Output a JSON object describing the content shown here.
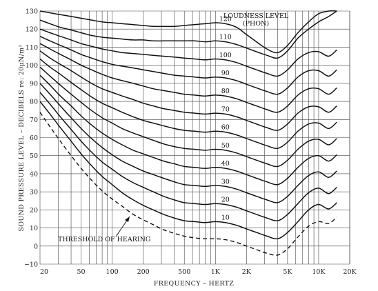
{
  "chart_data": {
    "type": "line",
    "title": "",
    "xlabel": "FREQUENCY – HERTZ",
    "ylabel": "SOUND PRESSURE LEVEL – DECIBELS re: 20μN/m²",
    "x_scale": "log",
    "xlim": [
      20,
      20000
    ],
    "ylim": [
      -10,
      130
    ],
    "x_ticks": [
      {
        "value": 20,
        "label": "20"
      },
      {
        "value": 50,
        "label": "50"
      },
      {
        "value": 100,
        "label": "100"
      },
      {
        "value": 200,
        "label": "200"
      },
      {
        "value": 500,
        "label": "500"
      },
      {
        "value": 1000,
        "label": "1K"
      },
      {
        "value": 2000,
        "label": "2K"
      },
      {
        "value": 5000,
        "label": "5K"
      },
      {
        "value": 10000,
        "label": "10K"
      },
      {
        "value": 20000,
        "label": "20K"
      }
    ],
    "y_ticks": [
      {
        "value": 130,
        "label": "130"
      },
      {
        "value": 120,
        "label": "120"
      },
      {
        "value": 110,
        "label": "110"
      },
      {
        "value": 100,
        "label": "100"
      },
      {
        "value": 90,
        "label": "90"
      },
      {
        "value": 80,
        "label": "80"
      },
      {
        "value": 70,
        "label": "70"
      },
      {
        "value": 60,
        "label": "60"
      },
      {
        "value": 50,
        "label": "50"
      },
      {
        "value": 40,
        "label": "40"
      },
      {
        "value": 30,
        "label": "30"
      },
      {
        "value": 20,
        "label": "20"
      },
      {
        "value": 10,
        "label": "10"
      },
      {
        "value": 0,
        "label": "0"
      },
      {
        "value": -10,
        "label": "−10"
      }
    ],
    "grid": "logarithmic vertical and horizontal",
    "legend_title_lines": [
      "LOUDNESS LEVEL",
      "(PHON)"
    ],
    "x": [
      20,
      25,
      31.5,
      40,
      50,
      63,
      80,
      100,
      125,
      160,
      200,
      250,
      315,
      400,
      500,
      630,
      800,
      1000,
      1250,
      1600,
      2000,
      2500,
      3150,
      4000,
      5000,
      6300,
      8000,
      10000,
      12500,
      15000
    ],
    "series": [
      {
        "name": "THRESHOLD OF HEARING",
        "style": "dashed",
        "values": [
          74,
          66,
          58,
          50,
          43,
          36.5,
          30.5,
          26,
          22,
          17.5,
          14.5,
          11.8,
          9,
          7,
          5.5,
          4.5,
          4,
          4,
          3.5,
          2,
          0,
          -2,
          -4,
          -5,
          -1.5,
          5,
          11,
          13.5,
          12.5,
          16
        ]
      },
      {
        "label": "10",
        "values": [
          80,
          73,
          65.5,
          58,
          51,
          44.5,
          38.5,
          34,
          29.5,
          25.5,
          22.5,
          20,
          17.5,
          15.5,
          14,
          13.5,
          13,
          13.5,
          13,
          11.5,
          9.5,
          7.5,
          5.5,
          4,
          7.5,
          13.5,
          20,
          23,
          20.5,
          24
        ]
      },
      {
        "label": "20",
        "values": [
          85,
          78.5,
          71.5,
          64.5,
          58,
          52,
          46.5,
          42.5,
          38.5,
          35,
          32.5,
          30,
          27.5,
          25.5,
          24,
          23.5,
          23,
          23.5,
          23,
          21.5,
          19.5,
          17.5,
          15.5,
          14,
          17.5,
          23.5,
          29.5,
          32,
          29,
          32.5
        ]
      },
      {
        "label": "30",
        "values": [
          90,
          84,
          77.5,
          71,
          65,
          59.5,
          54.5,
          50.5,
          47,
          44,
          41.5,
          39.5,
          37.5,
          35.5,
          34,
          33.5,
          33,
          33.5,
          33,
          31.5,
          29.5,
          27.5,
          25.5,
          24,
          27.5,
          33.5,
          39,
          41,
          38,
          41.5
        ]
      },
      {
        "label": "40",
        "values": [
          94.5,
          89,
          83,
          77.5,
          72,
          67,
          62.5,
          59,
          56,
          53,
          51,
          49,
          47,
          45.5,
          44,
          43.5,
          43,
          43.5,
          43,
          41.5,
          39.5,
          37.5,
          35.5,
          34,
          37.5,
          43.5,
          48.5,
          50,
          47,
          50.5
        ]
      },
      {
        "label": "50",
        "values": [
          99,
          94,
          89,
          84,
          79.5,
          75,
          71,
          68,
          65,
          62.5,
          60.5,
          58.5,
          56.5,
          55,
          54,
          53.5,
          53,
          53.5,
          53,
          51.5,
          49.5,
          47.5,
          45.5,
          44,
          47.5,
          53.5,
          58,
          59,
          56,
          59.5
        ]
      },
      {
        "label": "60",
        "values": [
          103.5,
          99,
          95,
          90.5,
          86.5,
          82.5,
          79,
          76.5,
          74,
          71.5,
          69.5,
          68,
          66.5,
          65,
          64,
          63.5,
          63,
          63.5,
          63,
          61.5,
          59.5,
          57.5,
          55.5,
          54,
          57.5,
          63.5,
          67.5,
          68,
          65,
          68.5
        ]
      },
      {
        "label": "70",
        "values": [
          108,
          104,
          100.5,
          97,
          93.5,
          90,
          87,
          85,
          83,
          81,
          79,
          77.5,
          76,
          75,
          74,
          73.5,
          73,
          73.5,
          73,
          71.5,
          69.5,
          67.5,
          65.5,
          64,
          67.5,
          73.5,
          77,
          77,
          74,
          77.5
        ]
      },
      {
        "label": "80",
        "values": [
          112,
          109,
          106,
          103,
          100,
          97.5,
          95,
          93,
          91.5,
          90,
          88.5,
          87,
          86,
          85,
          84,
          83.5,
          83,
          83.5,
          83,
          81.5,
          79.5,
          77.5,
          75.5,
          74,
          77.5,
          83.5,
          87,
          87,
          84,
          87.5
        ]
      },
      {
        "label": "90",
        "values": [
          116,
          113.5,
          111,
          108.5,
          106,
          104,
          102,
          100.5,
          99.5,
          98.5,
          97.5,
          96.5,
          95.5,
          94.5,
          94,
          93.5,
          93,
          93.5,
          93,
          91.5,
          89.5,
          87.5,
          85.5,
          84,
          87.5,
          93.5,
          97,
          97,
          94,
          97.5
        ]
      },
      {
        "label": "100",
        "values": [
          120,
          118,
          116,
          114,
          112,
          110.5,
          109,
          108,
          107,
          106.5,
          106,
          105.5,
          105,
          104.5,
          104,
          103.5,
          103,
          103.5,
          103,
          101.5,
          99.5,
          97.5,
          95.5,
          94,
          97.5,
          103.5,
          107,
          107.5,
          105,
          108.5
        ]
      },
      {
        "label": "110",
        "values": [
          125,
          123,
          121,
          119.5,
          118,
          116.5,
          115.5,
          115,
          114.5,
          114,
          114,
          113.5,
          113.5,
          113.5,
          113.5,
          113.5,
          113,
          113.5,
          113,
          111.5,
          109.5,
          107.5,
          105.5,
          104,
          108,
          115,
          120,
          124,
          127,
          130
        ]
      },
      {
        "label": "120",
        "values": [
          130,
          129,
          128,
          127,
          126,
          125,
          124,
          123.5,
          123,
          122.5,
          122,
          121.5,
          121.5,
          121.5,
          122,
          122.5,
          123,
          123.5,
          123,
          121,
          117,
          113,
          109,
          107,
          111,
          118,
          124,
          128.5,
          130,
          130
        ]
      }
    ]
  }
}
